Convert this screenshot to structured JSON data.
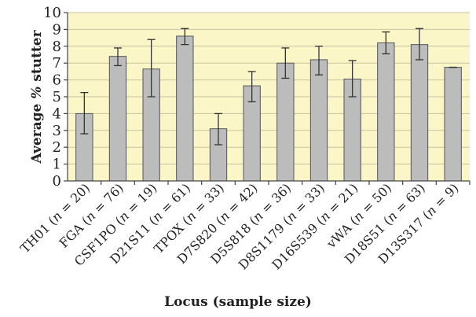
{
  "chart_data": {
    "type": "bar",
    "x_label": "Locus (sample size)",
    "y_label_parts": [
      "Average ",
      "%",
      " stutter"
    ],
    "ylim": [
      0,
      10
    ],
    "y_ticks": [
      0,
      1,
      2,
      3,
      4,
      5,
      6,
      7,
      8,
      9,
      10
    ],
    "grid": "horizontal",
    "categories": [
      {
        "locus": "TH01",
        "n": "20"
      },
      {
        "locus": "FGA",
        "n": "76"
      },
      {
        "locus": "CSF1PO",
        "n": "19"
      },
      {
        "locus": "D21S11",
        "n": "61"
      },
      {
        "locus": "TPOX",
        "n": "33"
      },
      {
        "locus": "D7S820",
        "n": "42"
      },
      {
        "locus": "D5S818",
        "n": "36"
      },
      {
        "locus": "D8S1179",
        "n": "33"
      },
      {
        "locus": "D16S539",
        "n": "21"
      },
      {
        "locus": "vWA",
        "n": "50"
      },
      {
        "locus": "D18S51",
        "n": "63"
      },
      {
        "locus": "D13S317",
        "n": "9"
      }
    ],
    "values": [
      4.0,
      7.4,
      6.65,
      8.6,
      3.1,
      5.65,
      7.0,
      7.2,
      6.05,
      8.2,
      8.1,
      6.75
    ],
    "error_low": [
      2.8,
      6.85,
      5.0,
      8.1,
      2.15,
      4.7,
      6.1,
      6.3,
      5.0,
      7.55,
      7.2,
      6.75
    ],
    "error_high": [
      5.25,
      7.9,
      8.4,
      9.05,
      4.0,
      6.5,
      7.9,
      8.0,
      7.15,
      8.85,
      9.05,
      6.75
    ],
    "colors": {
      "plot_background": "#fbf6c8",
      "gridline": "#c9c39f",
      "bar_fill": "#bcbcbc",
      "bar_stroke": "#555555",
      "axis": "#444444",
      "error_bar": "#333333"
    }
  }
}
